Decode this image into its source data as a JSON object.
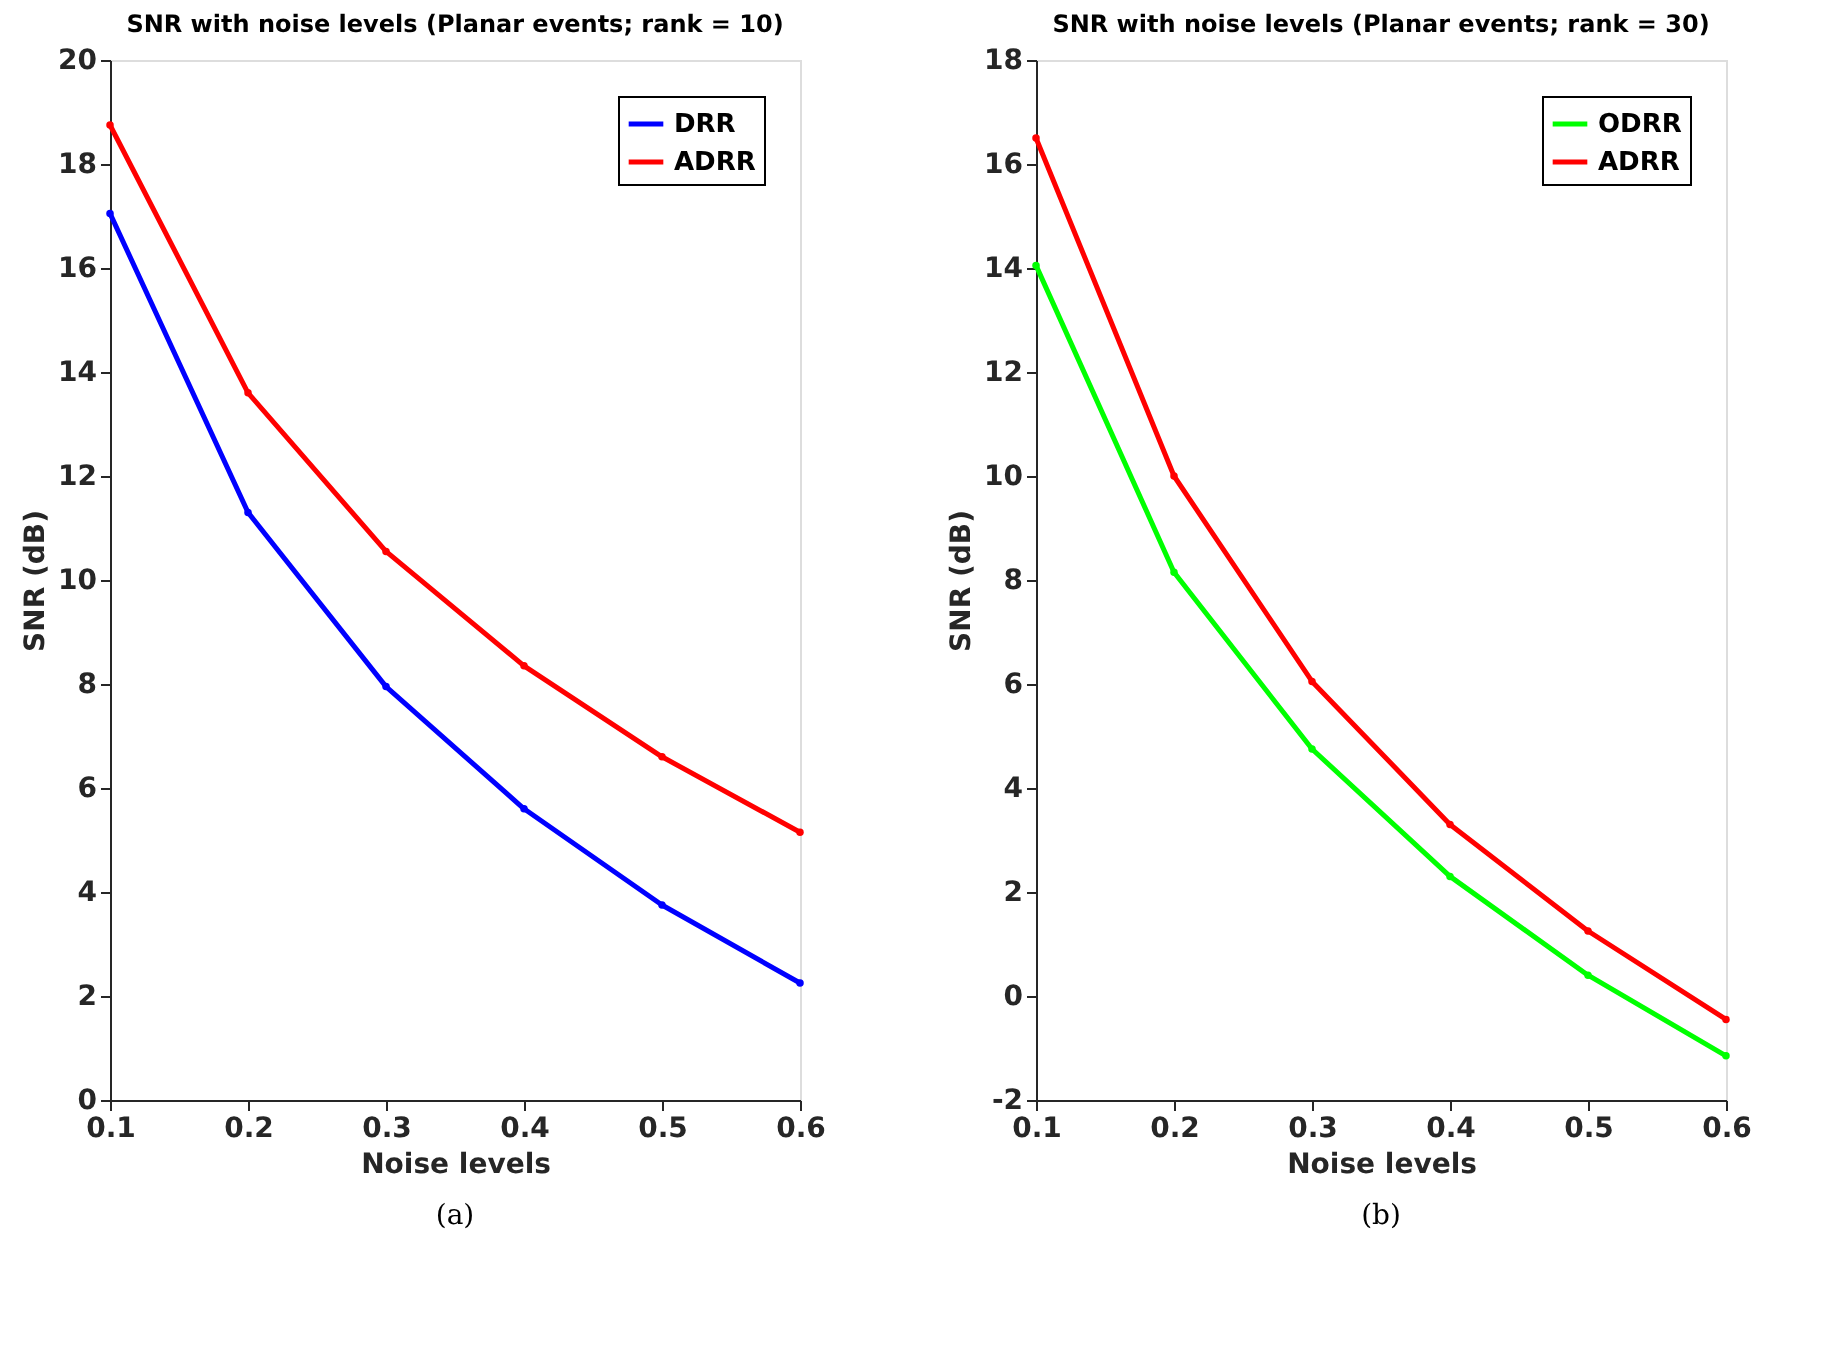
{
  "chart_data": [
    {
      "type": "line",
      "title": "SNR with noise levels (Planar events; rank = 10)",
      "xlabel": "Noise levels",
      "ylabel": "SNR (dB)",
      "annotations": [
        "(a)"
      ],
      "x": [
        0.1,
        0.2,
        0.3,
        0.4,
        0.5,
        0.6
      ],
      "series": [
        {
          "name": "DRR",
          "color": "#0000ff",
          "values": [
            17.05,
            11.3,
            7.95,
            5.6,
            3.75,
            2.25
          ]
        },
        {
          "name": "ADRR",
          "color": "#ff0000",
          "values": [
            18.75,
            13.6,
            10.55,
            8.35,
            6.6,
            5.15
          ]
        }
      ],
      "xlim": [
        0.1,
        0.6
      ],
      "xticks": [
        0.1,
        0.2,
        0.3,
        0.4,
        0.5,
        0.6
      ],
      "ylim": [
        0,
        20
      ],
      "yticks": [
        0,
        2,
        4,
        6,
        8,
        10,
        12,
        14,
        16,
        18,
        20
      ],
      "grid": false,
      "legend": "top right",
      "marker": "circle",
      "line_style": "solid"
    },
    {
      "type": "line",
      "title": "SNR with noise levels (Planar events; rank = 30)",
      "xlabel": "Noise levels",
      "ylabel": "SNR (dB)",
      "annotations": [
        "(b)"
      ],
      "x": [
        0.1,
        0.2,
        0.3,
        0.4,
        0.5,
        0.6
      ],
      "series": [
        {
          "name": "ODRR",
          "color": "#00ff00",
          "values": [
            14.05,
            8.15,
            4.75,
            2.3,
            0.4,
            -1.15
          ]
        },
        {
          "name": "ADRR",
          "color": "#ff0000",
          "values": [
            16.5,
            10.0,
            6.05,
            3.3,
            1.25,
            -0.45
          ]
        }
      ],
      "xlim": [
        0.1,
        0.6
      ],
      "xticks": [
        0.1,
        0.2,
        0.3,
        0.4,
        0.5,
        0.6
      ],
      "ylim": [
        -2,
        18
      ],
      "yticks": [
        -2,
        0,
        2,
        4,
        6,
        8,
        10,
        12,
        14,
        16,
        18
      ],
      "grid": false,
      "legend": "top right",
      "marker": "circle",
      "line_style": "solid"
    }
  ]
}
